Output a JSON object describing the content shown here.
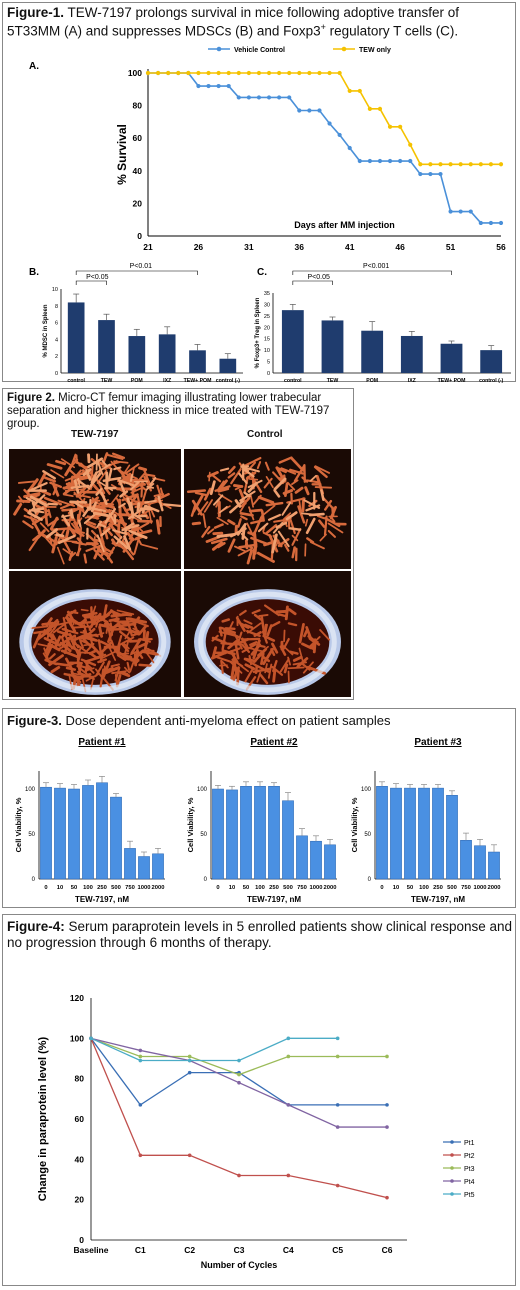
{
  "fig1": {
    "title_bold": "Figure-1.",
    "title_rest": " TEW-7197 prolongs survival in mice following adoptive transfer of 5T33MM (A) and suppresses MDSCs (B) and Foxp3",
    "title_sup": "+",
    "title_end": " regulatory T cells (C).",
    "panel_a": "A.",
    "panel_b": "B.",
    "panel_c": "C."
  },
  "fig2": {
    "title_bold": "Figure 2.",
    "title_rest": " Micro-CT femur imaging illustrating lower trabecular separation and higher thickness in mice treated with TEW-7197 group.",
    "col1": "TEW-7197",
    "col2": "Control"
  },
  "fig3": {
    "title_bold": "Figure-3.",
    "title_rest": " Dose dependent anti-myeloma effect on patient samples"
  },
  "fig4": {
    "title_bold": "Figure-4:",
    "title_rest": " Serum paraprotein levels in 5 enrolled patients show clinical response and no progression through 6 months of therapy."
  },
  "chart_data": [
    {
      "id": "survival",
      "type": "line",
      "title": "",
      "xlabel": "Days after MM injection",
      "ylabel": "% Survival",
      "xlim": [
        21,
        56
      ],
      "ylim": [
        0,
        100
      ],
      "xticks": [
        21,
        26,
        31,
        36,
        41,
        46,
        51,
        56
      ],
      "yticks": [
        0,
        20,
        40,
        60,
        80,
        100
      ],
      "legend_position": "top",
      "series": [
        {
          "name": "Vehicle Control",
          "color": "#4a90d9",
          "x": [
            21,
            22,
            23,
            24,
            25,
            26,
            27,
            28,
            29,
            30,
            31,
            32,
            33,
            34,
            35,
            36,
            37,
            38,
            39,
            40,
            41,
            42,
            43,
            44,
            45,
            46,
            47,
            48,
            49,
            50,
            51,
            52,
            53,
            54,
            55,
            56
          ],
          "y": [
            100,
            100,
            100,
            100,
            100,
            92,
            92,
            92,
            92,
            85,
            85,
            85,
            85,
            85,
            85,
            77,
            77,
            77,
            69,
            62,
            54,
            46,
            46,
            46,
            46,
            46,
            46,
            38,
            38,
            38,
            15,
            15,
            15,
            8,
            8,
            8
          ]
        },
        {
          "name": "TEW only",
          "color": "#f5c200",
          "x": [
            21,
            22,
            23,
            24,
            25,
            26,
            27,
            28,
            29,
            30,
            31,
            32,
            33,
            34,
            35,
            36,
            37,
            38,
            39,
            40,
            41,
            42,
            43,
            44,
            45,
            46,
            47,
            48,
            49,
            50,
            51,
            52,
            53,
            54,
            55,
            56
          ],
          "y": [
            100,
            100,
            100,
            100,
            100,
            100,
            100,
            100,
            100,
            100,
            100,
            100,
            100,
            100,
            100,
            100,
            100,
            100,
            100,
            100,
            89,
            89,
            78,
            78,
            67,
            67,
            56,
            44,
            44,
            44,
            44,
            44,
            44,
            44,
            44,
            44
          ]
        }
      ]
    },
    {
      "id": "mdsc",
      "type": "bar",
      "ylabel": "% MDSC in Spleen",
      "ylim": [
        0,
        10
      ],
      "yticks": [
        0,
        2,
        4,
        6,
        8,
        10
      ],
      "categories": [
        "control",
        "TEW",
        "POM",
        "IXZ",
        "TEW+ POM",
        "control (-)"
      ],
      "values": [
        8.4,
        6.3,
        4.4,
        4.6,
        2.7,
        1.7
      ],
      "errors": [
        1.0,
        0.7,
        0.8,
        0.9,
        0.7,
        0.6
      ],
      "annotations": [
        "P<0.05",
        "P<0.01"
      ]
    },
    {
      "id": "foxp3",
      "type": "bar",
      "ylabel": "% Foxp3+ Treg in Spleen",
      "ylim": [
        0,
        35
      ],
      "yticks": [
        0,
        5,
        10,
        15,
        20,
        25,
        30,
        35
      ],
      "categories": [
        "control",
        "TEW",
        "POM",
        "IXZ",
        "TEW+ POM",
        "control (-)"
      ],
      "values": [
        27.5,
        23,
        18.5,
        16.2,
        12.8,
        10
      ],
      "errors": [
        2.5,
        1.5,
        4.0,
        2.0,
        1.2,
        2.0
      ],
      "annotations": [
        "P<0.05",
        "P<0.001"
      ]
    },
    {
      "id": "pt1",
      "type": "bar",
      "title": "Patient #1",
      "xlabel": "TEW-7197, nM",
      "ylabel": "Cell Viability, %",
      "ylim": [
        0,
        120
      ],
      "yticks": [
        0,
        50,
        100
      ],
      "categories": [
        "0",
        "10",
        "50",
        "100",
        "250",
        "500",
        "750",
        "1000",
        "2000"
      ],
      "values": [
        102,
        101,
        100,
        104,
        107,
        91,
        34,
        25,
        28
      ],
      "errors": [
        5,
        5,
        5,
        6,
        7,
        4,
        8,
        5,
        6
      ]
    },
    {
      "id": "pt2",
      "type": "bar",
      "title": "Patient #2",
      "xlabel": "TEW-7197, nM",
      "ylabel": "Cell Viability, %",
      "ylim": [
        0,
        120
      ],
      "yticks": [
        0,
        50,
        100
      ],
      "categories": [
        "0",
        "10",
        "50",
        "100",
        "250",
        "500",
        "750",
        "1000",
        "2000"
      ],
      "values": [
        100,
        99,
        103,
        103,
        103,
        87,
        48,
        42,
        38
      ],
      "errors": [
        4,
        4,
        5,
        5,
        4,
        9,
        8,
        6,
        6
      ]
    },
    {
      "id": "pt3",
      "type": "bar",
      "title": "Patient #3",
      "xlabel": "TEW-7197, nM",
      "ylabel": "Cell Viability, %",
      "ylim": [
        0,
        120
      ],
      "yticks": [
        0,
        50,
        100
      ],
      "categories": [
        "0",
        "10",
        "50",
        "100",
        "250",
        "500",
        "750",
        "1000",
        "2000"
      ],
      "values": [
        103,
        101,
        101,
        101,
        101,
        93,
        43,
        37,
        30
      ],
      "errors": [
        5,
        5,
        4,
        4,
        4,
        5,
        8,
        7,
        8
      ]
    },
    {
      "id": "paraprotein",
      "type": "line",
      "xlabel": "Number of Cycles",
      "ylabel": "Change in paraprotein level (%)",
      "ylim": [
        0,
        120
      ],
      "yticks": [
        0,
        20,
        40,
        60,
        80,
        100,
        120
      ],
      "categories": [
        "Baseline",
        "C1",
        "C2",
        "C3",
        "C4",
        "C5",
        "C6"
      ],
      "legend_position": "right",
      "series": [
        {
          "name": "Pt1",
          "color": "#3a6fb5",
          "values": [
            100,
            67,
            83,
            83,
            67,
            67,
            67
          ]
        },
        {
          "name": "Pt2",
          "color": "#c0504d",
          "values": [
            100,
            42,
            42,
            32,
            32,
            27,
            21
          ]
        },
        {
          "name": "Pt3",
          "color": "#9bbb59",
          "values": [
            100,
            91,
            91,
            82,
            91,
            91,
            91
          ]
        },
        {
          "name": "Pt4",
          "color": "#8064a2",
          "values": [
            100,
            94,
            89,
            78,
            67,
            56,
            56
          ]
        },
        {
          "name": "Pt5",
          "color": "#4bacc6",
          "values": [
            100,
            89,
            89,
            89,
            100,
            100,
            null
          ]
        }
      ]
    }
  ]
}
